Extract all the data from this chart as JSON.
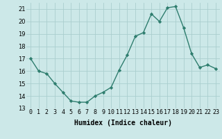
{
  "x": [
    0,
    1,
    2,
    3,
    4,
    5,
    6,
    7,
    8,
    9,
    10,
    11,
    12,
    13,
    14,
    15,
    16,
    17,
    18,
    19,
    20,
    21,
    22,
    23
  ],
  "y": [
    17,
    16,
    15.8,
    15,
    14.3,
    13.6,
    13.5,
    13.5,
    14.0,
    14.3,
    14.7,
    16.1,
    17.3,
    18.8,
    19.1,
    20.6,
    20.0,
    21.1,
    21.2,
    19.5,
    17.4,
    16.3,
    16.5,
    16.2
  ],
  "line_color": "#2e7d6e",
  "marker": "D",
  "marker_size": 2.2,
  "bg_color": "#cce8e8",
  "grid_color": "#aacece",
  "xlabel": "Humidex (Indice chaleur)",
  "ylim": [
    13,
    21.5
  ],
  "xlim": [
    -0.5,
    23.5
  ],
  "yticks": [
    13,
    14,
    15,
    16,
    17,
    18,
    19,
    20,
    21
  ],
  "xtick_labels": [
    "0",
    "1",
    "2",
    "3",
    "4",
    "5",
    "6",
    "7",
    "8",
    "9",
    "10",
    "11",
    "12",
    "13",
    "14",
    "15",
    "16",
    "17",
    "18",
    "19",
    "20",
    "21",
    "22",
    "23"
  ],
  "xlabel_fontsize": 7,
  "tick_fontsize": 6,
  "line_width": 1.0
}
